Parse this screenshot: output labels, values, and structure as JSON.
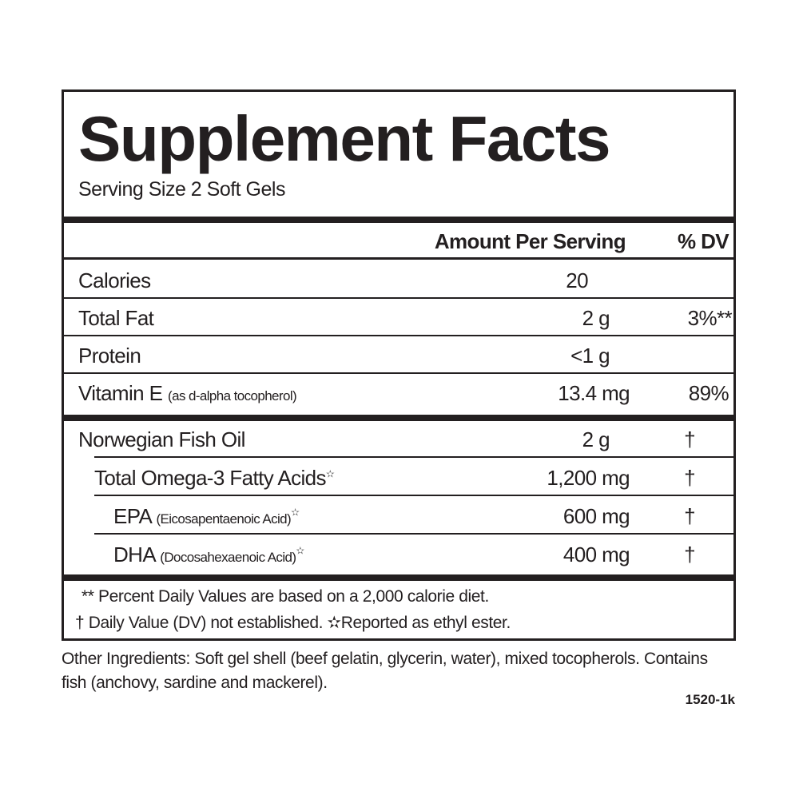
{
  "label": {
    "title": "Supplement Facts",
    "serving_size": "Serving Size 2 Soft Gels",
    "header": {
      "amount": "Amount Per Serving",
      "dv": "% DV"
    },
    "nutrients": [
      {
        "name": "Calories",
        "note": "",
        "amount": "20",
        "dv": ""
      },
      {
        "name": "Total Fat",
        "note": "",
        "amount": "2 g",
        "dv": "3%**"
      },
      {
        "name": "Protein",
        "note": "",
        "amount": "<1 g",
        "dv": ""
      },
      {
        "name": "Vitamin E",
        "note": "(as d-alpha tocopherol)",
        "amount": "13.4 mg",
        "dv": "89%"
      }
    ],
    "ingredients": [
      {
        "name": "Norwegian Fish Oil",
        "note": "",
        "star": "",
        "amount": "2 g",
        "dv": "†"
      },
      {
        "name": "Total Omega-3 Fatty Acids",
        "note": "",
        "star": "✫",
        "amount": "1,200 mg",
        "dv": "†"
      },
      {
        "name": "EPA",
        "note": "(Eicosapentaenoic Acid)",
        "star": "✫",
        "amount": "600 mg",
        "dv": "†"
      },
      {
        "name": "DHA",
        "note": "(Docosahexaenoic Acid)",
        "star": "✫",
        "amount": "400 mg",
        "dv": "†"
      }
    ],
    "footnotes": [
      "** Percent Daily Values are based on a 2,000 calorie diet.",
      "† Daily Value (DV) not established.  ✫Reported as ethyl ester."
    ]
  },
  "other_ingredients": "Other Ingredients: Soft gel shell (beef gelatin, glycerin, water), mixed tocopherols. Contains fish (anchovy, sardine and mackerel).",
  "code": "1520-1k"
}
